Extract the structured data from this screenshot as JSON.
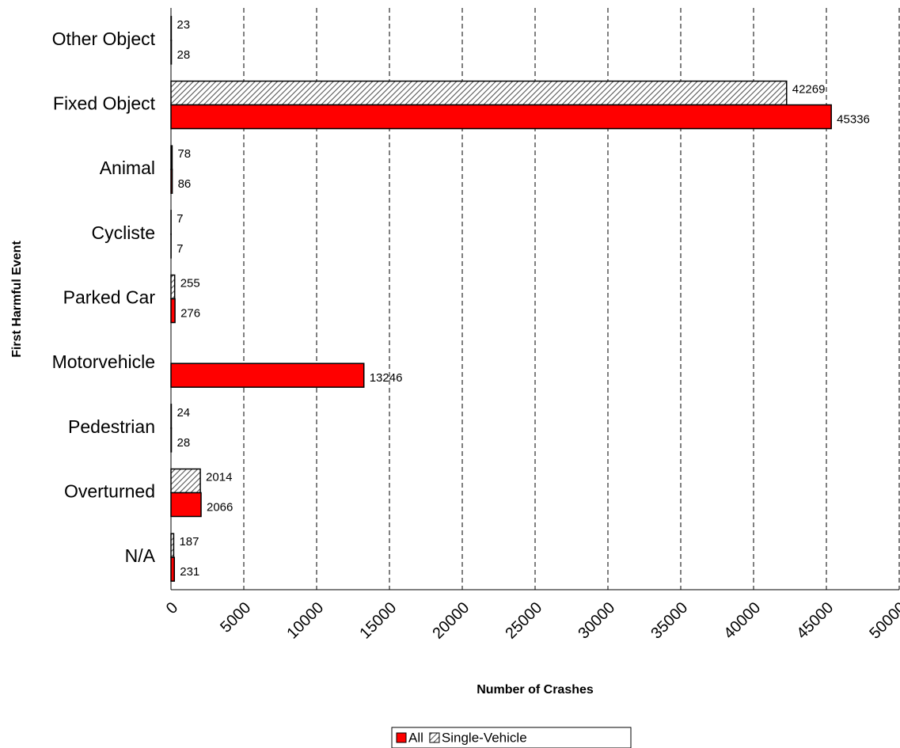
{
  "chart_data": {
    "type": "bar",
    "orientation": "horizontal",
    "x_label": "Number of Crashes",
    "y_label": "First Harmful Event",
    "categories": [
      "Other Object",
      "Fixed Object",
      "Animal",
      "Cycliste",
      "Parked Car",
      "Motorvehicle",
      "Pedestrian",
      "Overturned",
      "N/A"
    ],
    "series": [
      {
        "name": "All",
        "color": "#ff0000",
        "values": [
          28,
          45336,
          86,
          7,
          276,
          13246,
          28,
          2066,
          231
        ]
      },
      {
        "name": "Single-Vehicle",
        "color": "#c0c0c0",
        "pattern": "hatch",
        "values": [
          23,
          42269,
          78,
          7,
          255,
          null,
          24,
          2014,
          187
        ]
      }
    ],
    "xlim": [
      0,
      50000
    ],
    "xticks": [
      0,
      5000,
      10000,
      15000,
      20000,
      25000,
      30000,
      35000,
      40000,
      45000,
      50000
    ],
    "grid": true,
    "legend": "bottom"
  }
}
